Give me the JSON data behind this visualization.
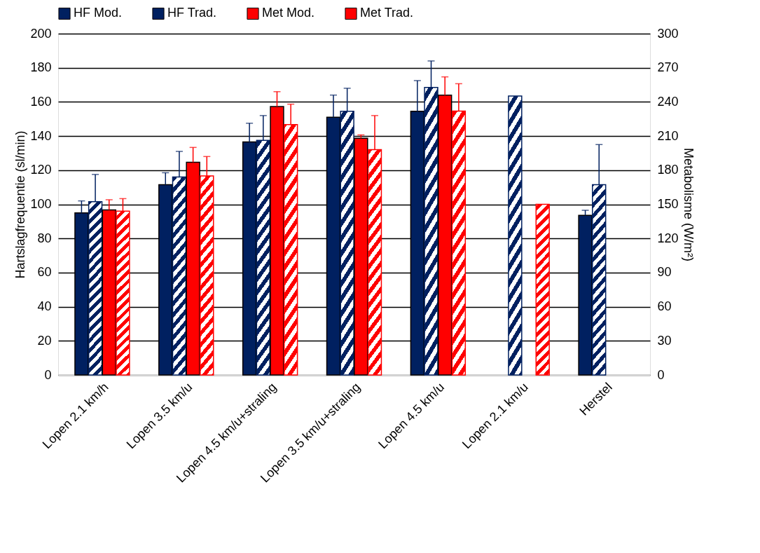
{
  "chart_data": {
    "type": "bar",
    "ylabel": "Hartslagfrequentie (sl/min)",
    "y2label": "Metabolisme (W/m²)",
    "categories": [
      "Lopen 2.1 km/h",
      "Lopen 3.5 km/u",
      "Lopen 4.5 km/u+straling",
      "Lopen 3.5 km/u+straling",
      "Lopen 4.5 km/u",
      "Lopen 2.1 km/u",
      "Herstel"
    ],
    "series": [
      {
        "name": "HF Mod.",
        "color": "#002060",
        "values": [
          95,
          111.5,
          136.5,
          151,
          154.5,
          null,
          93.5
        ],
        "errors": [
          [
            95,
            102
          ],
          [
            111.5,
            118.5
          ],
          [
            136.5,
            147.5
          ],
          [
            151,
            164
          ],
          [
            154.5,
            172.5
          ],
          null,
          [
            93.5,
            96.5
          ]
        ]
      },
      {
        "name": "HF Trad.",
        "color": "#002060",
        "values": [
          101.5,
          116,
          137.5,
          154.5,
          168.5,
          163.5,
          111.5
        ],
        "errors": [
          [
            101.5,
            117.5
          ],
          [
            116,
            131
          ],
          [
            137.5,
            152
          ],
          [
            154.5,
            168
          ],
          [
            168.5,
            184
          ],
          null,
          [
            111.5,
            135
          ]
        ]
      },
      {
        "name": "Met Mod.",
        "color": "#ff0000",
        "axis": "y2",
        "values": [
          145,
          187,
          236,
          208,
          246,
          null,
          null
        ],
        "errors": [
          [
            145,
            154
          ],
          [
            187,
            200
          ],
          [
            236,
            249
          ],
          [
            208,
            211
          ],
          [
            246,
            262
          ],
          null,
          null
        ]
      },
      {
        "name": "Met Trad.",
        "color": "#ff0000",
        "axis": "y2",
        "values": [
          144,
          175,
          220,
          198,
          232,
          150,
          null
        ],
        "errors": [
          [
            144,
            155
          ],
          [
            175,
            192
          ],
          [
            220,
            238
          ],
          [
            198,
            228
          ],
          [
            232,
            256
          ],
          null,
          null
        ]
      }
    ],
    "ylim": [
      0,
      200
    ],
    "yticks": [
      0,
      20,
      40,
      60,
      80,
      100,
      120,
      140,
      160,
      180,
      200
    ],
    "y2lim": [
      0,
      300
    ],
    "y2ticks": [
      0,
      30,
      60,
      90,
      120,
      150,
      180,
      210,
      240,
      270,
      300
    ],
    "grid": "y",
    "legend": "top"
  }
}
